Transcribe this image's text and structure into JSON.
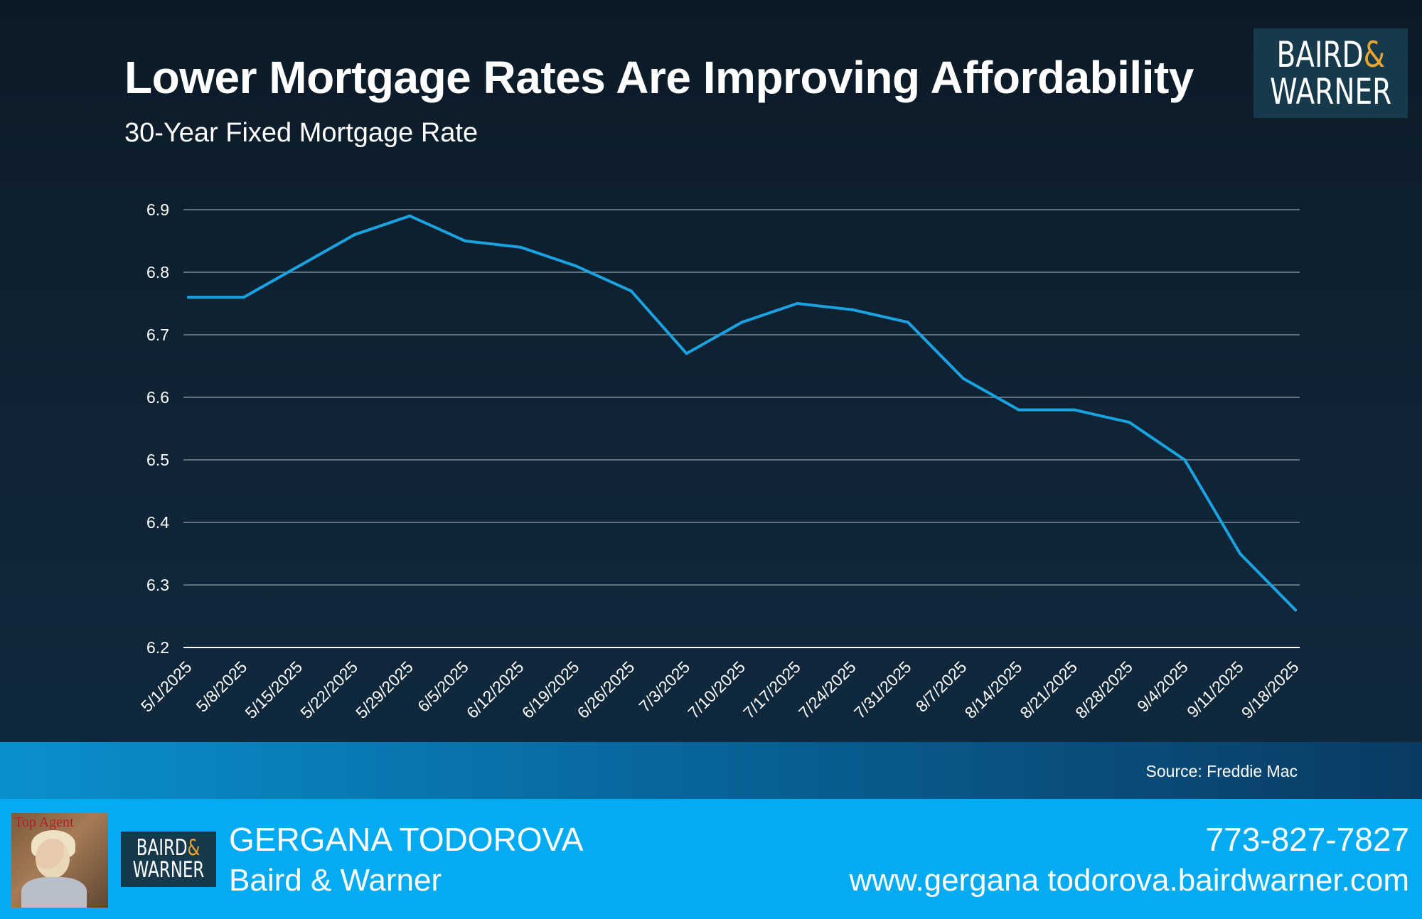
{
  "header": {
    "title": "Lower Mortgage Rates Are Improving Affordability",
    "subtitle": "30-Year Fixed Mortgage Rate",
    "brand_line1": "BAIRD",
    "brand_amp": "&",
    "brand_line2": "WARNER"
  },
  "colors": {
    "line": "#1aa3e0",
    "grid": "#7a8a96",
    "accent_amp": "#e9a531",
    "footer": "#04abf0"
  },
  "chart_data": {
    "type": "line",
    "title": "Lower Mortgage Rates Are Improving Affordability",
    "subtitle": "30-Year Fixed Mortgage Rate",
    "categories": [
      "5/1/2025",
      "5/8/2025",
      "5/15/2025",
      "5/22/2025",
      "5/29/2025",
      "6/5/2025",
      "6/12/2025",
      "6/19/2025",
      "6/26/2025",
      "7/3/2025",
      "7/10/2025",
      "7/17/2025",
      "7/24/2025",
      "7/31/2025",
      "8/7/2025",
      "8/14/2025",
      "8/21/2025",
      "8/28/2025",
      "9/4/2025",
      "9/11/2025",
      "9/18/2025"
    ],
    "values": [
      6.76,
      6.76,
      6.81,
      6.86,
      6.89,
      6.85,
      6.84,
      6.81,
      6.77,
      6.67,
      6.72,
      6.75,
      6.74,
      6.72,
      6.63,
      6.58,
      6.58,
      6.56,
      6.5,
      6.35,
      6.26
    ],
    "ylim": [
      6.2,
      6.9
    ],
    "yticks": [
      "6.2",
      "6.3",
      "6.4",
      "6.5",
      "6.6",
      "6.7",
      "6.8",
      "6.9"
    ],
    "grid": true,
    "legend": "none",
    "xlabel": "",
    "ylabel": ""
  },
  "source": "Source: Freddie Mac",
  "footer": {
    "photo_caption": "Top Agent",
    "brand_line1": "BAIRD",
    "brand_amp": "&",
    "brand_line2": "WARNER",
    "agent_name": "GERGANA TODOROVA",
    "company": "Baird & Warner",
    "phone": "773-827-7827",
    "website": "www.gergana todorova.bairdwarner.com"
  }
}
